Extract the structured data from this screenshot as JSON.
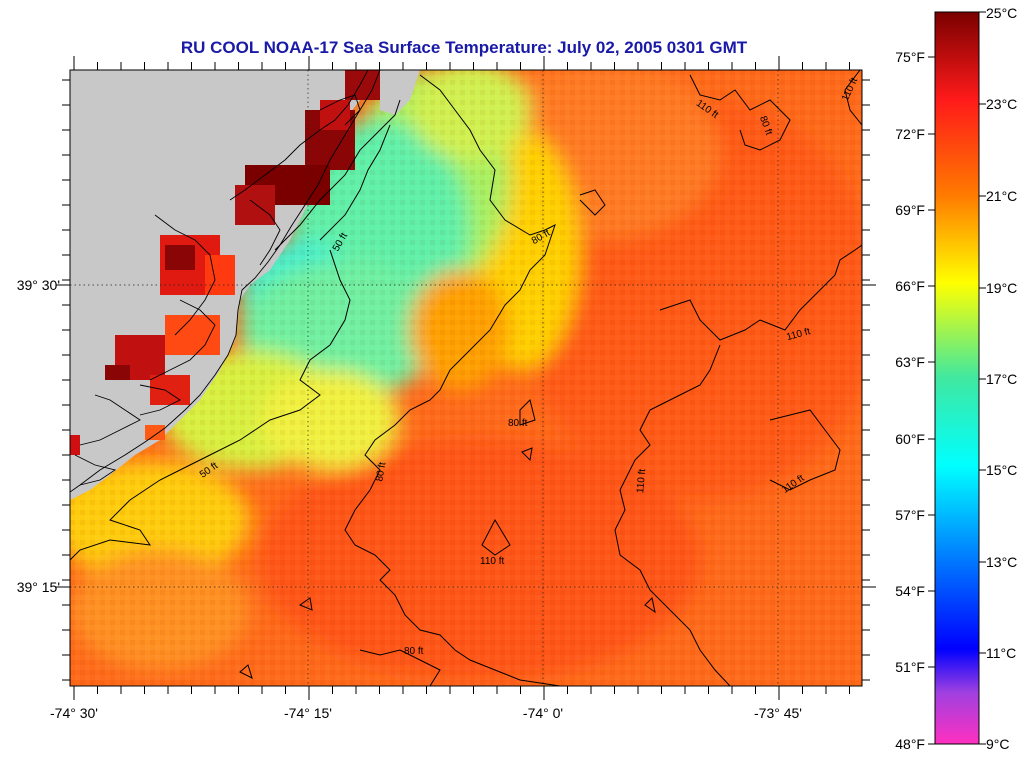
{
  "title": "RU COOL  NOAA-17  Sea Surface Temperature:  July 02, 2005 0301 GMT",
  "map": {
    "land_color": "#c8c8c8",
    "longitude_labels": [
      "-74° 30'",
      "-74° 15'",
      "-74° 0'",
      "-73° 45'"
    ],
    "latitude_labels": [
      "39° 30'",
      "39° 15'"
    ],
    "contour_labels": [
      "50 ft",
      "50 ft",
      "80 ft",
      "80 ft",
      "80 ft",
      "80 ft",
      "110 ft",
      "110 ft",
      "110 ft",
      "110 ft",
      "110 ft",
      "110 ft",
      "80 ft"
    ]
  },
  "colorbar": {
    "celsius_labels": [
      "25°C",
      "23°C",
      "21°C",
      "19°C",
      "17°C",
      "15°C",
      "13°C",
      "11°C",
      "9°C"
    ],
    "fahrenheit_labels": [
      "75°F",
      "72°F",
      "69°F",
      "66°F",
      "63°F",
      "60°F",
      "57°F",
      "54°F",
      "51°F",
      "48°F"
    ],
    "stops": [
      "#8a0000",
      "#ff1010",
      "#ff8000",
      "#ffff00",
      "#30e8a0",
      "#00ffff",
      "#0080ff",
      "#0000ff",
      "#9040ff",
      "#ff30c0"
    ]
  }
}
